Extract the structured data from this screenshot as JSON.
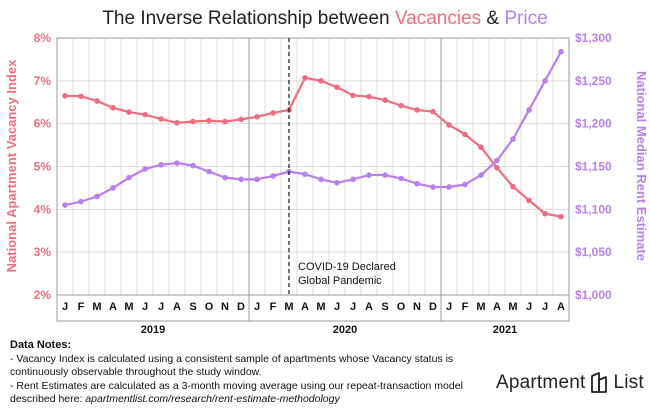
{
  "colors": {
    "vacancy": "#f26b80",
    "price": "#b77ff0",
    "grid": "#dcdcdc",
    "text": "#222222"
  },
  "title": {
    "prefix": "The Inverse Relationship between ",
    "vacancies": "Vacancies",
    "amp": " & ",
    "price": "Price"
  },
  "chart_data": {
    "type": "line",
    "title": "The Inverse Relationship between Vacancies & Price",
    "x": [
      "J",
      "F",
      "M",
      "A",
      "M",
      "J",
      "J",
      "A",
      "S",
      "O",
      "N",
      "D",
      "J",
      "F",
      "M",
      "A",
      "M",
      "J",
      "J",
      "A",
      "S",
      "O",
      "N",
      "D",
      "J",
      "F",
      "M",
      "A",
      "M",
      "J",
      "J",
      "A"
    ],
    "year_labels": [
      "2019",
      "2020",
      "2021"
    ],
    "y_left": {
      "label": "National Apartment Vacancy Index",
      "ticks": [
        "2%",
        "3%",
        "4%",
        "5%",
        "6%",
        "7%",
        "8%"
      ],
      "range": [
        2,
        8
      ]
    },
    "y_right": {
      "label": "National Median Rent Estimate",
      "ticks": [
        "$1,000",
        "$1,050",
        "$1,100",
        "$1,150",
        "$1,200",
        "$1,250",
        "$1,300"
      ],
      "range": [
        1000,
        1300
      ]
    },
    "series": [
      {
        "axis": "left",
        "values": [
          6.65,
          6.64,
          6.53,
          6.37,
          6.27,
          6.21,
          6.11,
          6.02,
          6.05,
          6.07,
          6.05,
          6.1,
          6.16,
          6.25,
          6.32,
          7.07,
          7.0,
          6.85,
          6.66,
          6.63,
          6.55,
          6.42,
          6.32,
          6.28,
          5.97,
          5.75,
          5.45,
          4.97,
          4.53,
          4.21,
          3.9,
          3.83
        ]
      },
      {
        "axis": "right",
        "values": [
          1105,
          1109,
          1115,
          1125,
          1137,
          1147,
          1152,
          1154,
          1151,
          1144,
          1137,
          1135,
          1135,
          1139,
          1144,
          1141,
          1135,
          1131,
          1135,
          1140,
          1140,
          1136,
          1130,
          1126,
          1126,
          1129,
          1140,
          1157,
          1182,
          1216,
          1250,
          1284
        ]
      }
    ],
    "annotation": {
      "text_lines": [
        "COVID-19 Declared",
        "Global Pandemic"
      ],
      "at_index": 14
    }
  },
  "notes": {
    "heading": "Data Notes:",
    "line1": "- Vacancy Index is calculated using a consistent sample of apartments whose Vacancy status is",
    "line2": "continuously observable throughout the study window.",
    "line3": "- Rent Estimates are calculated as a 3-month moving average using our repeat-transaction model",
    "line4_prefix": "described here: ",
    "line4_url": "apartmentlist.com/research/rent-estimate-methodology"
  },
  "logo": {
    "left": "Apartment",
    "right": "List",
    "icon": "apartment-list-icon"
  }
}
